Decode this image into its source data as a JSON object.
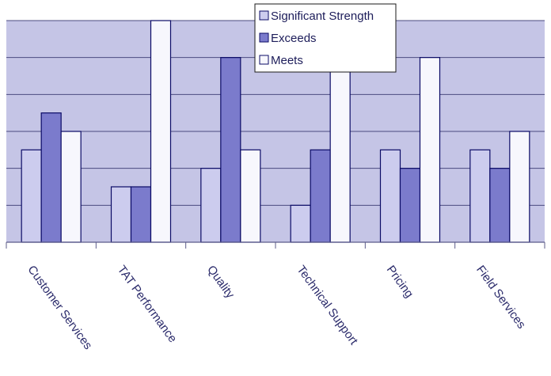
{
  "chart_data": {
    "type": "bar",
    "title": "",
    "xlabel": "",
    "ylabel": "",
    "ylim": [
      0,
      12
    ],
    "grid": true,
    "legend_position": "top-center",
    "categories": [
      "Customer Services",
      "TAT Performance",
      "Quality",
      "Technical Support",
      "Pricing",
      "Field Services"
    ],
    "series": [
      {
        "name": "Significant Strength",
        "color": "#ccccee",
        "values": [
          5,
          3,
          4,
          2,
          5,
          5
        ]
      },
      {
        "name": "Exceeds",
        "color": "#7b7bcc",
        "values": [
          7,
          3,
          10,
          5,
          4,
          4
        ]
      },
      {
        "name": "Meets",
        "color": "#f7f7fd",
        "values": [
          6,
          12,
          5,
          10,
          10,
          6
        ]
      }
    ]
  },
  "colors": {
    "plot_background": "#c5c5e6",
    "gridline": "#4a4a80",
    "bar_stroke": "#0b0b66",
    "axis": "#5c5c8a"
  }
}
